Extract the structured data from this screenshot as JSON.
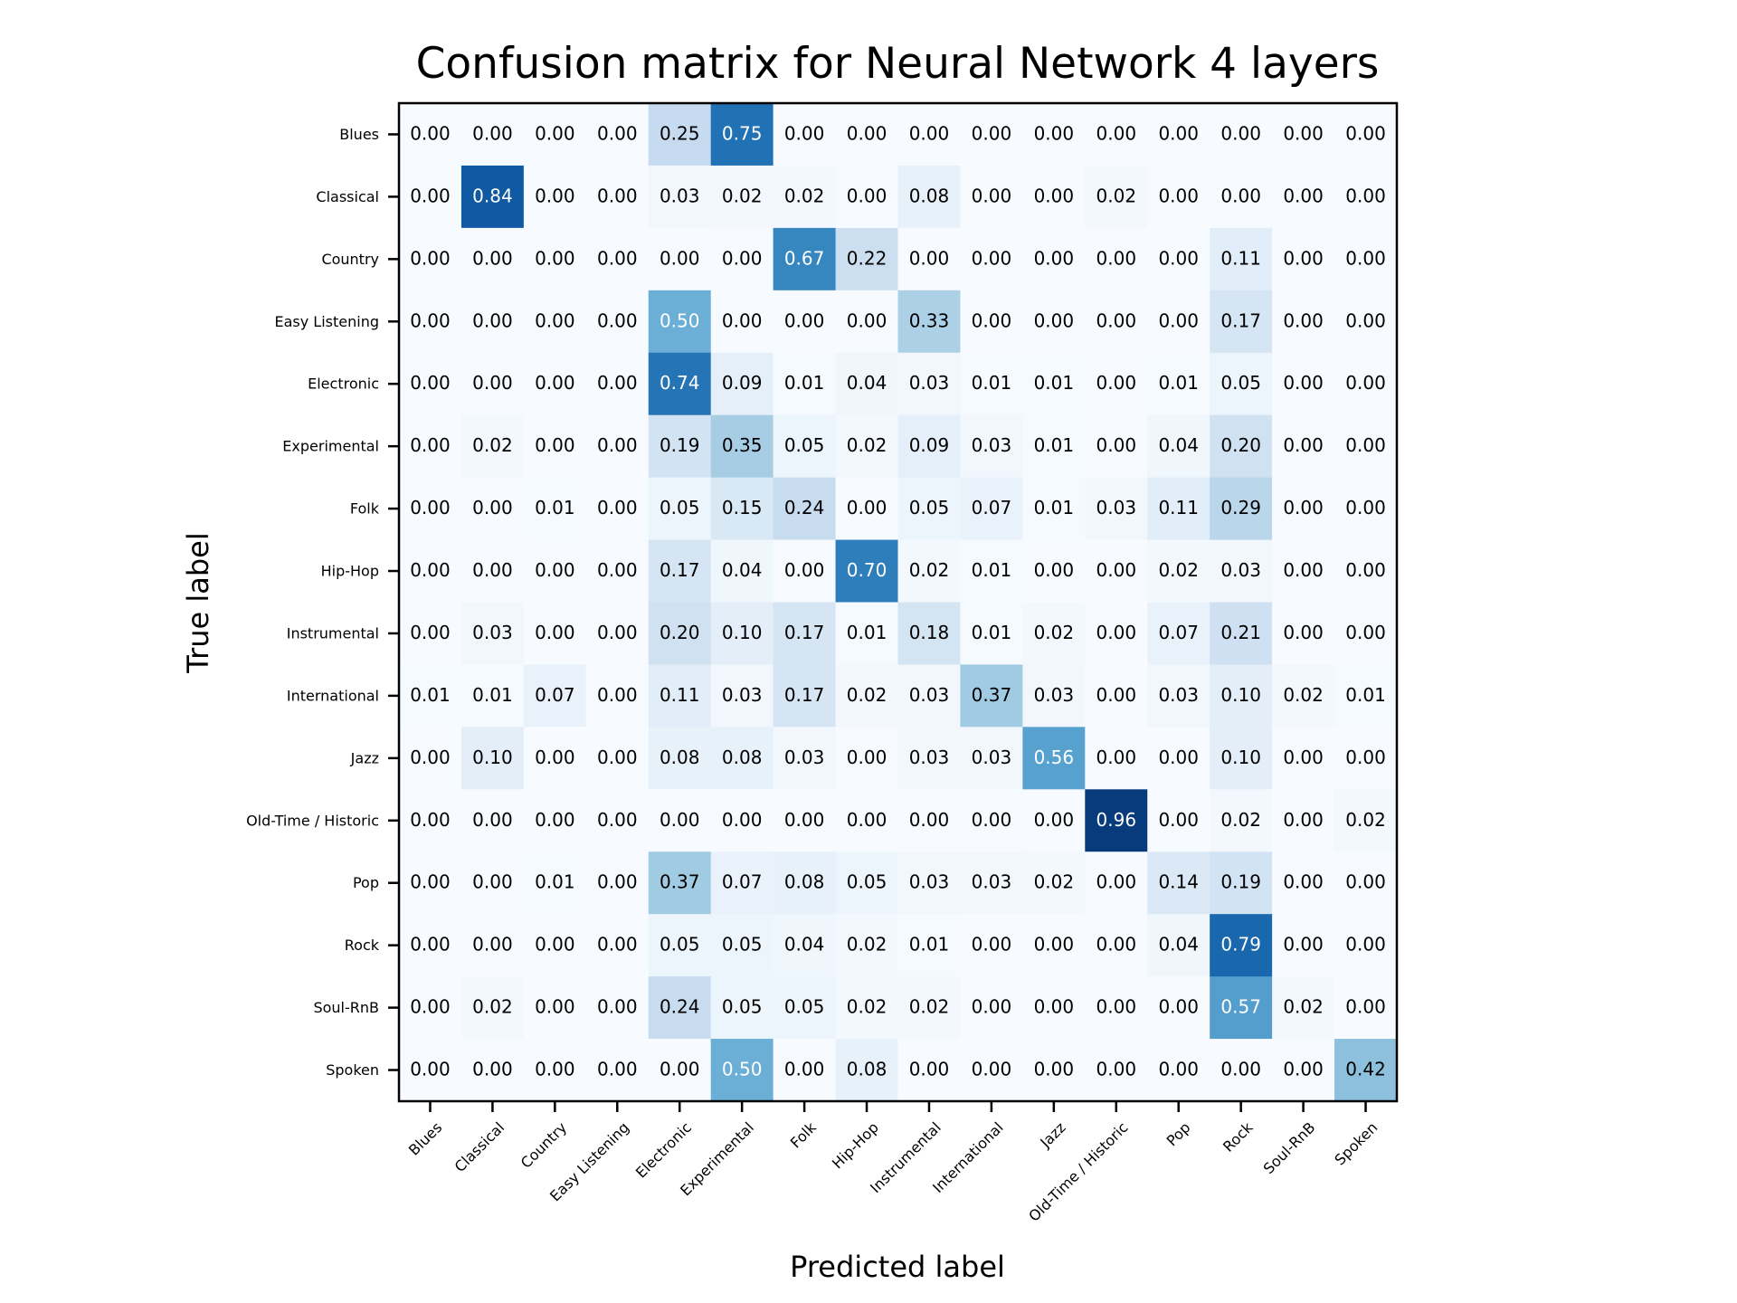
{
  "chart_data": {
    "type": "heatmap",
    "title": "Confusion matrix for Neural Network 4 layers",
    "xlabel": "Predicted label",
    "ylabel": "True label",
    "colormap": "Blues",
    "value_range": [
      0,
      1
    ],
    "grid": false,
    "x_categories": [
      "Blues",
      "Classical",
      "Country",
      "Easy Listening",
      "Electronic",
      "Experimental",
      "Folk",
      "Hip-Hop",
      "Instrumental",
      "International",
      "Jazz",
      "Old-Time / Historic",
      "Pop",
      "Rock",
      "Soul-RnB",
      "Spoken"
    ],
    "y_categories": [
      "Blues",
      "Classical",
      "Country",
      "Easy Listening",
      "Electronic",
      "Experimental",
      "Folk",
      "Hip-Hop",
      "Instrumental",
      "International",
      "Jazz",
      "Old-Time / Historic",
      "Pop",
      "Rock",
      "Soul-RnB",
      "Spoken"
    ],
    "values": [
      [
        "0.00",
        "0.00",
        "0.00",
        "0.00",
        "0.25",
        "0.75",
        "0.00",
        "0.00",
        "0.00",
        "0.00",
        "0.00",
        "0.00",
        "0.00",
        "0.00",
        "0.00",
        "0.00"
      ],
      [
        "0.00",
        "0.84",
        "0.00",
        "0.00",
        "0.03",
        "0.02",
        "0.02",
        "0.00",
        "0.08",
        "0.00",
        "0.00",
        "0.02",
        "0.00",
        "0.00",
        "0.00",
        "0.00"
      ],
      [
        "0.00",
        "0.00",
        "0.00",
        "0.00",
        "0.00",
        "0.00",
        "0.67",
        "0.22",
        "0.00",
        "0.00",
        "0.00",
        "0.00",
        "0.00",
        "0.11",
        "0.00",
        "0.00"
      ],
      [
        "0.00",
        "0.00",
        "0.00",
        "0.00",
        "0.50",
        "0.00",
        "0.00",
        "0.00",
        "0.33",
        "0.00",
        "0.00",
        "0.00",
        "0.00",
        "0.17",
        "0.00",
        "0.00"
      ],
      [
        "0.00",
        "0.00",
        "0.00",
        "0.00",
        "0.74",
        "0.09",
        "0.01",
        "0.04",
        "0.03",
        "0.01",
        "0.01",
        "0.00",
        "0.01",
        "0.05",
        "0.00",
        "0.00"
      ],
      [
        "0.00",
        "0.02",
        "0.00",
        "0.00",
        "0.19",
        "0.35",
        "0.05",
        "0.02",
        "0.09",
        "0.03",
        "0.01",
        "0.00",
        "0.04",
        "0.20",
        "0.00",
        "0.00"
      ],
      [
        "0.00",
        "0.00",
        "0.01",
        "0.00",
        "0.05",
        "0.15",
        "0.24",
        "0.00",
        "0.05",
        "0.07",
        "0.01",
        "0.03",
        "0.11",
        "0.29",
        "0.00",
        "0.00"
      ],
      [
        "0.00",
        "0.00",
        "0.00",
        "0.00",
        "0.17",
        "0.04",
        "0.00",
        "0.70",
        "0.02",
        "0.01",
        "0.00",
        "0.00",
        "0.02",
        "0.03",
        "0.00",
        "0.00"
      ],
      [
        "0.00",
        "0.03",
        "0.00",
        "0.00",
        "0.20",
        "0.10",
        "0.17",
        "0.01",
        "0.18",
        "0.01",
        "0.02",
        "0.00",
        "0.07",
        "0.21",
        "0.00",
        "0.00"
      ],
      [
        "0.01",
        "0.01",
        "0.07",
        "0.00",
        "0.11",
        "0.03",
        "0.17",
        "0.02",
        "0.03",
        "0.37",
        "0.03",
        "0.00",
        "0.03",
        "0.10",
        "0.02",
        "0.01"
      ],
      [
        "0.00",
        "0.10",
        "0.00",
        "0.00",
        "0.08",
        "0.08",
        "0.03",
        "0.00",
        "0.03",
        "0.03",
        "0.56",
        "0.00",
        "0.00",
        "0.10",
        "0.00",
        "0.00"
      ],
      [
        "0.00",
        "0.00",
        "0.00",
        "0.00",
        "0.00",
        "0.00",
        "0.00",
        "0.00",
        "0.00",
        "0.00",
        "0.00",
        "0.96",
        "0.00",
        "0.02",
        "0.00",
        "0.02"
      ],
      [
        "0.00",
        "0.00",
        "0.01",
        "0.00",
        "0.37",
        "0.07",
        "0.08",
        "0.05",
        "0.03",
        "0.03",
        "0.02",
        "0.00",
        "0.14",
        "0.19",
        "0.00",
        "0.00"
      ],
      [
        "0.00",
        "0.00",
        "0.00",
        "0.00",
        "0.05",
        "0.05",
        "0.04",
        "0.02",
        "0.01",
        "0.00",
        "0.00",
        "0.00",
        "0.04",
        "0.79",
        "0.00",
        "0.00"
      ],
      [
        "0.00",
        "0.02",
        "0.00",
        "0.00",
        "0.24",
        "0.05",
        "0.05",
        "0.02",
        "0.02",
        "0.00",
        "0.00",
        "0.00",
        "0.00",
        "0.57",
        "0.02",
        "0.00"
      ],
      [
        "0.00",
        "0.00",
        "0.00",
        "0.00",
        "0.00",
        "0.50",
        "0.00",
        "0.08",
        "0.00",
        "0.00",
        "0.00",
        "0.00",
        "0.00",
        "0.00",
        "0.00",
        "0.42"
      ]
    ]
  }
}
